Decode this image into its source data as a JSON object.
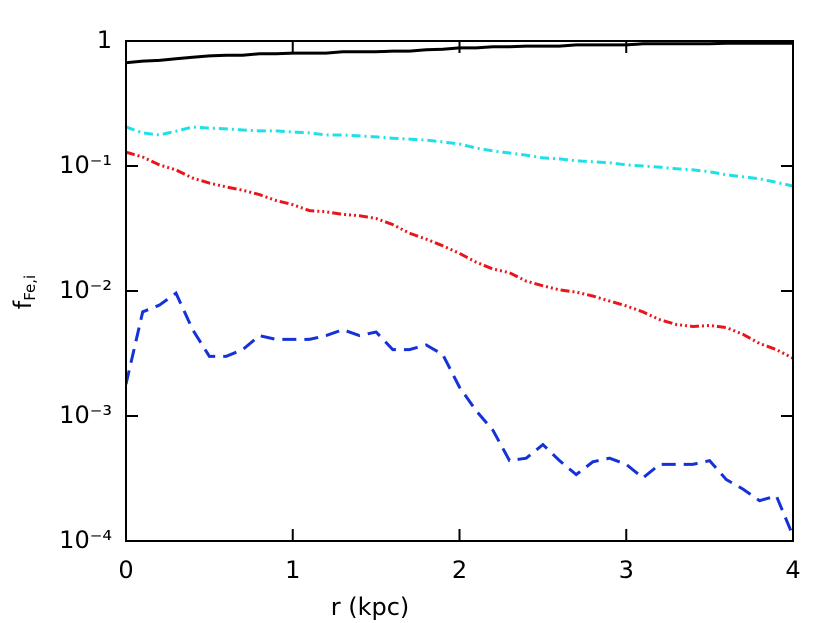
{
  "chart_data": {
    "type": "line",
    "xlabel": "r (kpc)",
    "ylabel": "f",
    "ylabel_sub": "Fe,i",
    "log_y": true,
    "xlim": [
      0,
      4
    ],
    "xticks": [
      0,
      1,
      2,
      3,
      4
    ],
    "ylim": [
      0.0001,
      1
    ],
    "yticks": [
      {
        "value": 0.0001,
        "label": "10⁻⁴"
      },
      {
        "value": 0.001,
        "label": "10⁻³"
      },
      {
        "value": 0.01,
        "label": "10⁻²"
      },
      {
        "value": 0.1,
        "label": "10⁻¹"
      },
      1
    ],
    "x": [
      0,
      0.1,
      0.2,
      0.3,
      0.4,
      0.5,
      0.6,
      0.7,
      0.8,
      0.9,
      1.0,
      1.1,
      1.2,
      1.3,
      1.4,
      1.5,
      1.6,
      1.7,
      1.8,
      1.9,
      2.0,
      2.1,
      2.2,
      2.3,
      2.4,
      2.5,
      2.6,
      2.7,
      2.8,
      2.9,
      3.0,
      3.1,
      3.2,
      3.3,
      3.4,
      3.5,
      3.6,
      3.7,
      3.8,
      3.9,
      4.0
    ],
    "series": [
      {
        "color": "#000000",
        "dash": "none",
        "values": [
          0.67,
          0.69,
          0.7,
          0.72,
          0.74,
          0.76,
          0.77,
          0.77,
          0.79,
          0.79,
          0.8,
          0.8,
          0.8,
          0.82,
          0.82,
          0.82,
          0.83,
          0.83,
          0.85,
          0.86,
          0.88,
          0.88,
          0.9,
          0.9,
          0.91,
          0.91,
          0.91,
          0.93,
          0.93,
          0.93,
          0.93,
          0.95,
          0.95,
          0.95,
          0.95,
          0.95,
          0.96,
          0.96,
          0.96,
          0.96,
          0.96
        ]
      },
      {
        "color": "#1ee0e8",
        "dash": "9 4 2 4",
        "values": [
          0.205,
          0.184,
          0.177,
          0.19,
          0.205,
          0.201,
          0.198,
          0.194,
          0.191,
          0.191,
          0.187,
          0.184,
          0.177,
          0.177,
          0.174,
          0.171,
          0.167,
          0.164,
          0.161,
          0.156,
          0.15,
          0.139,
          0.132,
          0.127,
          0.122,
          0.116,
          0.114,
          0.11,
          0.108,
          0.106,
          0.102,
          0.1,
          0.098,
          0.095,
          0.093,
          0.09,
          0.085,
          0.082,
          0.079,
          0.074,
          0.069
        ]
      },
      {
        "color": "#e8161b",
        "dash": "9 3 2 3 2 3 2 3",
        "values": [
          0.129,
          0.118,
          0.102,
          0.093,
          0.08,
          0.073,
          0.068,
          0.064,
          0.059,
          0.053,
          0.049,
          0.044,
          0.043,
          0.041,
          0.04,
          0.038,
          0.034,
          0.029,
          0.026,
          0.023,
          0.02,
          0.017,
          0.015,
          0.014,
          0.012,
          0.011,
          0.0102,
          0.0098,
          0.0091,
          0.0083,
          0.0076,
          0.0068,
          0.0059,
          0.0054,
          0.0052,
          0.0053,
          0.0051,
          0.0045,
          0.0038,
          0.0034,
          0.0029
        ]
      },
      {
        "color": "#1432d8",
        "dash": "14 8",
        "values": [
          0.0018,
          0.0068,
          0.0077,
          0.0096,
          0.0049,
          0.003,
          0.003,
          0.0034,
          0.0044,
          0.0041,
          0.0041,
          0.0041,
          0.0044,
          0.0049,
          0.0044,
          0.0047,
          0.0034,
          0.0034,
          0.0037,
          0.0031,
          0.0017,
          0.0011,
          0.00077,
          0.00044,
          0.00046,
          0.00059,
          0.00044,
          0.00034,
          0.00043,
          0.00046,
          0.00041,
          0.00032,
          0.00041,
          0.00041,
          0.00041,
          0.00044,
          0.00031,
          0.00026,
          0.00021,
          0.00023,
          0.00011
        ]
      }
    ]
  }
}
